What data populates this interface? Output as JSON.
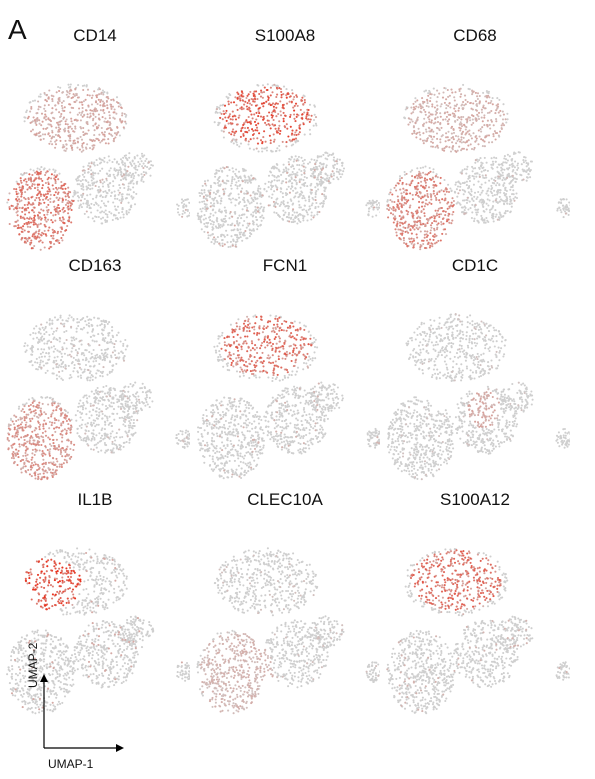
{
  "panel_label": "A",
  "chart_data": {
    "type": "scatter",
    "description_kind": "UMAP feature plots",
    "xlabel": "UMAP-1",
    "ylabel": "UMAP-2",
    "colors": {
      "low": "#cfcfcf",
      "high": "#e8321e"
    },
    "panels": [
      {
        "gene": "CD14",
        "high_regions": [
          "lower-left-lobe",
          "upper-lobe-partial"
        ],
        "intensity": 0.65
      },
      {
        "gene": "S100A8",
        "high_regions": [
          "upper-lobe"
        ],
        "intensity": 0.85
      },
      {
        "gene": "CD68",
        "high_regions": [
          "lower-left-lobe",
          "upper-lobe-partial"
        ],
        "intensity": 0.55
      },
      {
        "gene": "CD163",
        "high_regions": [
          "lower-left-lobe"
        ],
        "intensity": 0.45
      },
      {
        "gene": "FCN1",
        "high_regions": [
          "upper-lobe"
        ],
        "intensity": 0.7
      },
      {
        "gene": "CD1C",
        "high_regions": [
          "right-middle-small"
        ],
        "intensity": 0.35
      },
      {
        "gene": "IL1B",
        "high_regions": [
          "upper-left-lobe"
        ],
        "intensity": 0.95
      },
      {
        "gene": "CLEC10A",
        "high_regions": [
          "lower-left-lobe-sparse"
        ],
        "intensity": 0.4
      },
      {
        "gene": "S100A12",
        "high_regions": [
          "upper-lobe"
        ],
        "intensity": 0.7
      }
    ]
  }
}
